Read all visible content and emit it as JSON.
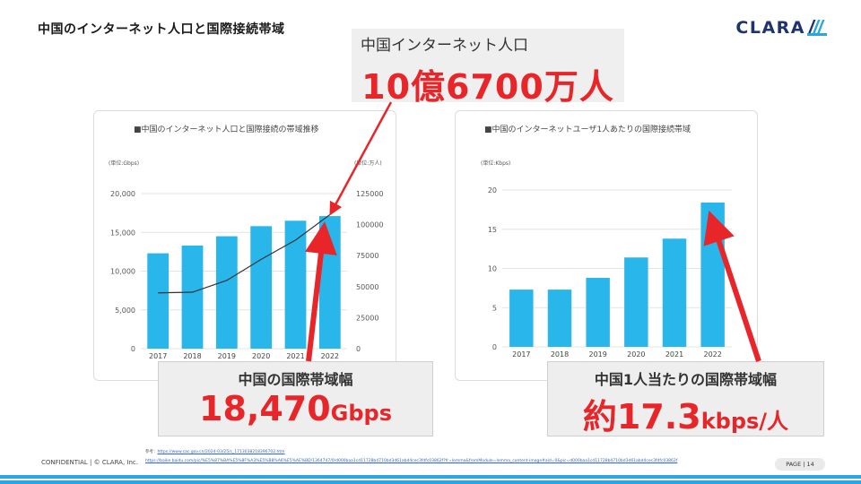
{
  "header": {
    "title": "中国のインターネット人口と国際接続帯域",
    "logo_text": "CLARA"
  },
  "callouts": {
    "top": {
      "label": "中国インターネット人口",
      "value": "10億6700万人"
    },
    "left": {
      "label": "中国の国際帯域幅",
      "number": "18,470",
      "unit": "Gbps"
    },
    "right": {
      "label": "中国1人当たりの国際帯域幅",
      "number": "約17.3",
      "unit": "kbps/人"
    }
  },
  "colors": {
    "bar": "#29b6ea",
    "accent_red": "#e8262a",
    "logo": "#1d3470",
    "line": "#333333"
  },
  "chart_data": [
    {
      "type": "bar",
      "title": "■中国のインターネット人口と国際接続の帯域推移",
      "left_unit": "(単位:Gbps)",
      "right_unit": "(単位:万人)",
      "categories": [
        "2017",
        "2018",
        "2019",
        "2020",
        "2021",
        "2022"
      ],
      "series": [
        {
          "name": "",
          "kind": "bar",
          "axis": "left",
          "values": [
            12300,
            13300,
            14500,
            15800,
            16500,
            17100
          ]
        },
        {
          "name": "",
          "kind": "line",
          "axis": "right",
          "values": [
            45000,
            45500,
            55000,
            72000,
            87500,
            108000
          ]
        }
      ],
      "ylim_left": [
        0,
        20000
      ],
      "yticks_left": [
        "0",
        "5,000",
        "10,000",
        "15,000",
        "20,000"
      ],
      "ylim_right": [
        0,
        125000
      ],
      "yticks_right": [
        "0",
        "25000",
        "50000",
        "75000",
        "100000",
        "125000"
      ],
      "grid": true
    },
    {
      "type": "bar",
      "title": "■中国のインターネットユーザ1人あたりの国際接続帯域",
      "left_unit": "(単位:Kbps)",
      "categories": [
        "2017",
        "2018",
        "2019",
        "2020",
        "2021",
        "2022"
      ],
      "series": [
        {
          "name": "",
          "kind": "bar",
          "axis": "left",
          "values": [
            7.3,
            7.3,
            8.8,
            11.4,
            13.8,
            18.4
          ]
        }
      ],
      "ylim_left": [
        0,
        20
      ],
      "yticks_left": [
        "0",
        "5",
        "10",
        "15",
        "20"
      ],
      "grid": true
    }
  ],
  "footer": {
    "confidential": "CONFIDENTIAL | © CLARA, Inc.",
    "ref_label": "参考：",
    "ref1": "https://www.cac.gov.cn/2024-03/25/c_1713038218396702.htm",
    "ref2": "https://baike.baidu.com/pic/%E5%87%BA%E5%8F%A3%E5%B8%A6%E5%AE%BD/1364747/0/d000baa1cd11728b4710bd3d61abd4cec3fdfc03862f?fr=lemma&fromModule=lemma_content-image#aid=0&pic=d000baa1cd11728b4710bd3d61abd4cec3fdfc03862f",
    "page": "PAGE | 14"
  }
}
